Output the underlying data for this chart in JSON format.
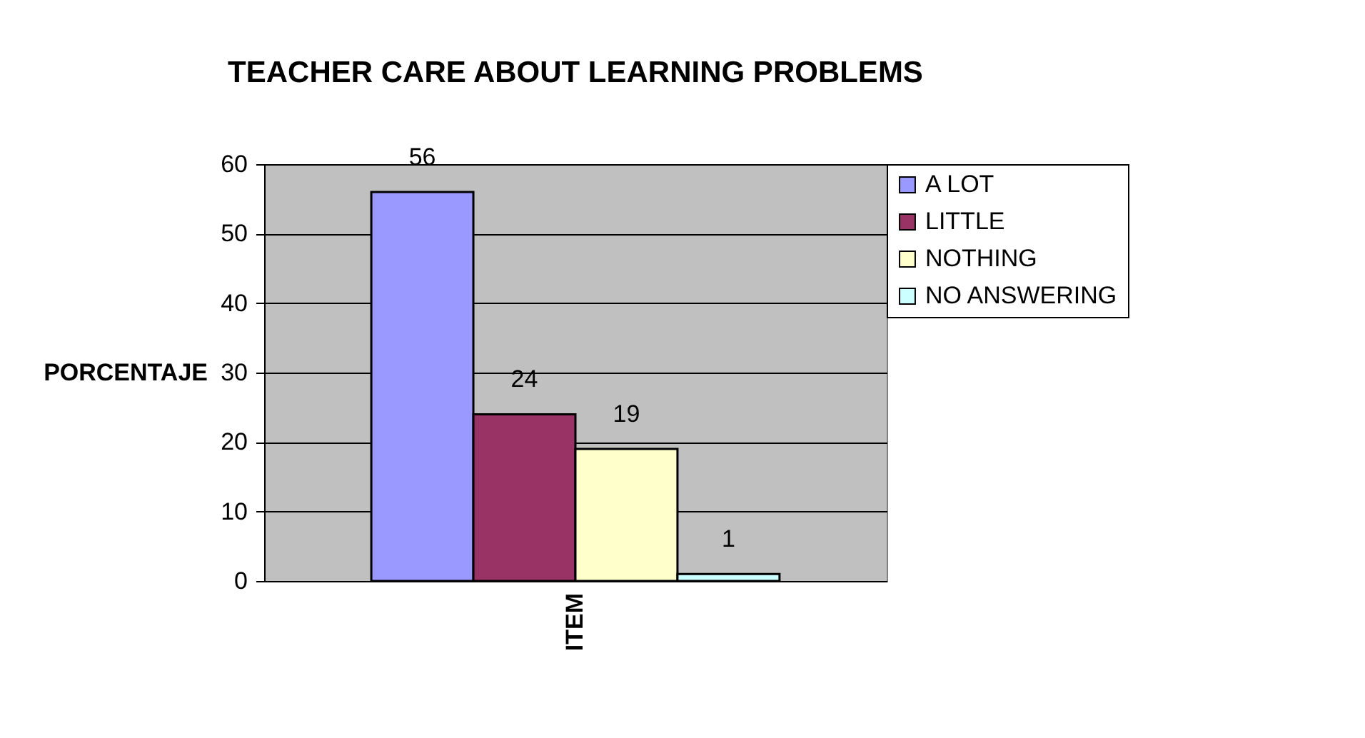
{
  "chart_data": {
    "type": "bar",
    "title": "TEACHER CARE ABOUT LEARNING PROBLEMS",
    "ylabel": "PORCENTAJE",
    "categories": [
      "ITEM"
    ],
    "series": [
      {
        "name": "A LOT",
        "color": "#9999ff",
        "values": [
          56
        ]
      },
      {
        "name": "LITTLE",
        "color": "#993366",
        "values": [
          24
        ]
      },
      {
        "name": "NOTHING",
        "color": "#ffffcc",
        "values": [
          19
        ]
      },
      {
        "name": "NO ANSWERING",
        "color": "#ccffff",
        "values": [
          1
        ]
      }
    ],
    "ylim": [
      0,
      60
    ],
    "yticks": [
      0,
      10,
      20,
      30,
      40,
      50,
      60
    ],
    "grid": "y",
    "legend": "right",
    "data_labels": true
  }
}
